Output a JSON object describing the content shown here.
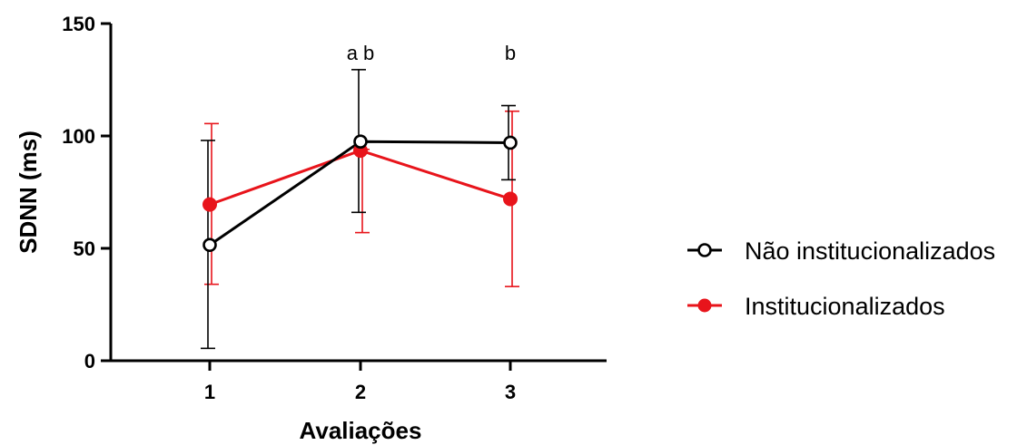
{
  "chart_data": {
    "type": "line",
    "title": "",
    "xlabel": "Avaliações",
    "ylabel": "SDNN (ms)",
    "categories": [
      "1",
      "2",
      "3"
    ],
    "ylim": [
      0,
      150
    ],
    "y_ticks": [
      "0",
      "50",
      "100",
      "150"
    ],
    "grid": false,
    "legend_position": "right",
    "series": [
      {
        "name": "Não institucionalizados",
        "color": "#000000",
        "marker": "open-circle",
        "values": [
          51.5,
          97.5,
          97
        ],
        "error_upper": [
          98,
          129.5,
          113.5
        ],
        "error_lower": [
          5.5,
          66,
          80.5
        ]
      },
      {
        "name": "Institucionalizados",
        "color": "#e8141b",
        "marker": "filled-circle",
        "values": [
          69.5,
          93.5,
          72
        ],
        "error_upper": [
          105.5,
          94,
          111
        ],
        "error_lower": [
          34,
          57,
          33
        ]
      }
    ],
    "annotations": [
      {
        "category": "2",
        "y": 137,
        "text": "a b"
      },
      {
        "category": "3",
        "y": 137,
        "text": "b"
      }
    ]
  }
}
